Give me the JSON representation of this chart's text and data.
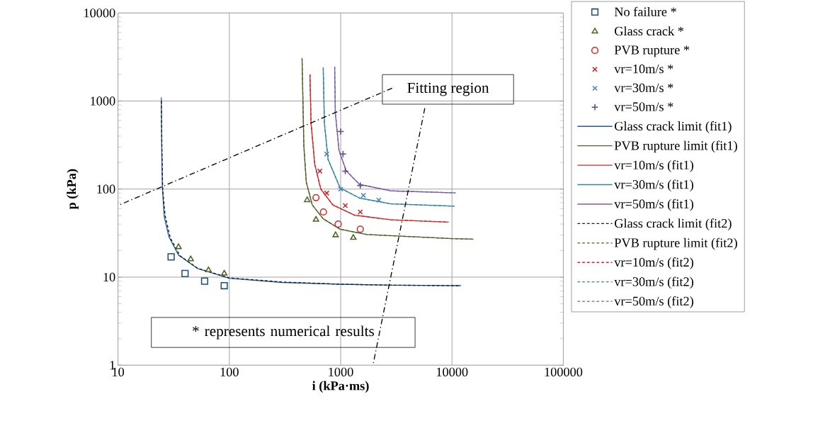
{
  "chart_data": {
    "type": "scatter",
    "xlabel": "i (kPa·ms)",
    "ylabel": "p (kPa)",
    "log": "xy",
    "grid": true,
    "legend": "right",
    "xlim": [
      10,
      100000
    ],
    "ylim": [
      1,
      10000
    ],
    "xticks": [
      10,
      100,
      1000,
      10000,
      100000
    ],
    "yticks": [
      1,
      10,
      100,
      1000,
      10000
    ],
    "annotations": [
      "Fitting region",
      "* represents numerical results"
    ],
    "series": [
      {
        "name": "No failure *",
        "marker": "square",
        "color": "#1f4e79",
        "x": [
          30,
          40,
          60,
          90
        ],
        "values": [
          17,
          11,
          9,
          8
        ]
      },
      {
        "name": "Glass crack *",
        "marker": "triangle",
        "color": "#4f6228",
        "x": [
          35,
          45,
          65,
          90,
          500,
          600,
          900,
          1300
        ],
        "values": [
          22,
          16,
          12,
          11,
          75,
          45,
          30,
          28
        ]
      },
      {
        "name": "PVB rupture *",
        "marker": "circle",
        "color": "#d42a2a",
        "x": [
          600,
          700,
          950,
          1500
        ],
        "values": [
          80,
          55,
          40,
          35
        ]
      },
      {
        "name": "vr=10m/s *",
        "marker": "cross",
        "color": "#c0282d",
        "x": [
          650,
          750,
          1100,
          1500
        ],
        "values": [
          160,
          90,
          65,
          55
        ]
      },
      {
        "name": "vr=30m/s *",
        "marker": "cross",
        "color": "#4f81bd",
        "x": [
          750,
          1000,
          1600,
          2200
        ],
        "values": [
          250,
          100,
          85,
          75
        ]
      },
      {
        "name": "vr=50m/s *",
        "marker": "plus",
        "color": "#604a7b",
        "x": [
          1000,
          1050,
          1100,
          1500
        ],
        "values": [
          450,
          250,
          160,
          110
        ]
      },
      {
        "name": "Glass crack limit (fit1)",
        "type": "line",
        "line_style": "solid",
        "color": "#1f5c99",
        "x": [
          24.5,
          24.7,
          25,
          26,
          28.7,
          35,
          52,
          100,
          300,
          1000,
          3000,
          12000
        ],
        "values": [
          1100,
          300,
          110,
          49,
          28.6,
          17.8,
          12.5,
          9.7,
          8.7,
          8.3,
          8.1,
          8.0
        ]
      },
      {
        "name": "PVB rupture limit (fit1)",
        "type": "line",
        "line_style": "solid",
        "color": "#4f6228",
        "x": [
          450,
          467,
          491,
          556,
          697,
          989,
          1718,
          9950,
          15600
        ],
        "values": [
          3060,
          310,
          120,
          66,
          46,
          35,
          30.5,
          27.4,
          27
        ]
      },
      {
        "name": "vr=10m/s (fit1)",
        "type": "line",
        "line_style": "solid",
        "color": "#d7262a",
        "x": [
          530,
          542,
          585,
          663,
          851,
          1337,
          2837,
          9300
        ],
        "values": [
          2000,
          563,
          192,
          100,
          66,
          50.5,
          44.8,
          42.2
        ]
      },
      {
        "name": "vr=30m/s (fit1)",
        "type": "line",
        "line_style": "solid",
        "color": "#31859c",
        "x": [
          697,
          714,
          771,
          989,
          1480,
          2837,
          10500
        ],
        "values": [
          2400,
          563,
          217,
          103,
          79,
          68,
          64
        ]
      },
      {
        "name": "vr=50m/s (fit1)",
        "type": "line",
        "line_style": "solid",
        "color": "#7d5ba6",
        "x": [
          884,
          895,
          966,
          1122,
          1480,
          2837,
          10750
        ],
        "values": [
          2445,
          743,
          275,
          161,
          113,
          95.5,
          90.6
        ]
      },
      {
        "name": "Glass crack limit (fit2)",
        "type": "line",
        "line_style": "dashed",
        "color": "#1a1a2e",
        "x": [
          24.5,
          24.8,
          25.2,
          26.5,
          29.5,
          36,
          52,
          100,
          300,
          1000,
          3000,
          12000
        ],
        "values": [
          1000,
          300,
          100,
          50,
          28,
          17.5,
          12.6,
          9.8,
          8.8,
          8.3,
          8.1,
          8.0
        ]
      },
      {
        "name": "PVB rupture limit (fit2)",
        "type": "line",
        "line_style": "dashed",
        "color": "#4f6228",
        "x": [
          450,
          467,
          491,
          556,
          697,
          989,
          1718,
          9950,
          15600
        ],
        "values": [
          3060,
          310,
          120,
          66,
          46,
          35,
          30.5,
          27.4,
          27
        ]
      },
      {
        "name": "vr=10m/s (fit2)",
        "type": "line",
        "line_style": "dashed",
        "color": "#d7262a",
        "x": [
          530,
          542,
          585,
          663,
          851,
          1337,
          2837,
          9300
        ],
        "values": [
          2000,
          563,
          192,
          100,
          66,
          50.5,
          44.8,
          42.2
        ]
      },
      {
        "name": "vr=30m/s (fit2)",
        "type": "line",
        "line_style": "dashed",
        "color": "#31859c",
        "x": [
          697,
          714,
          771,
          989,
          1480,
          2837,
          10500
        ],
        "values": [
          2400,
          563,
          217,
          103,
          79,
          68,
          64
        ]
      },
      {
        "name": "vr=50m/s (fit2)",
        "type": "line",
        "line_style": "dashed",
        "color": "#7d5ba6",
        "x": [
          884,
          895,
          966,
          1122,
          1480,
          2837,
          10750
        ],
        "values": [
          2445,
          743,
          275,
          161,
          113,
          95.5,
          90.6
        ]
      },
      {
        "type": "line",
        "line_style": "dashdot",
        "color": "#000000",
        "x": [
          2900,
          10
        ],
        "values": [
          1400,
          65
        ]
      },
      {
        "type": "line",
        "line_style": "dashdot",
        "color": "#000000",
        "x": [
          5700,
          1950
        ],
        "values": [
          830,
          1
        ]
      }
    ]
  }
}
